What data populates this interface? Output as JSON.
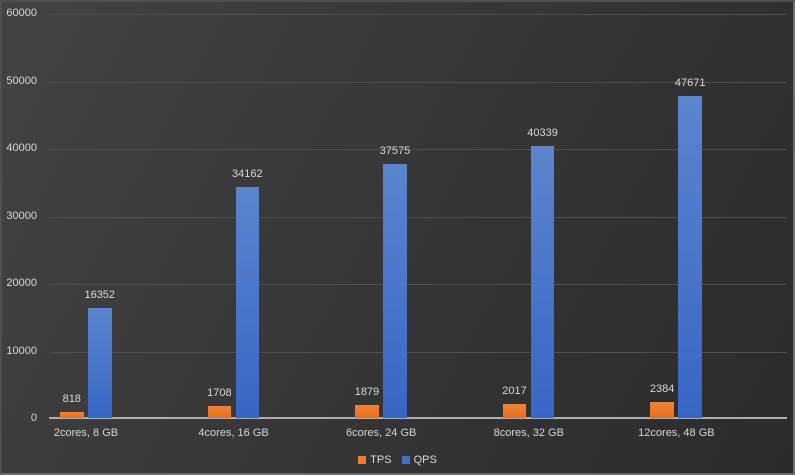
{
  "chart_data": {
    "type": "bar",
    "title": "",
    "xlabel": "",
    "ylabel": "",
    "categories": [
      "2cores, 8 GB",
      "4cores, 16 GB",
      "6cores, 24 GB",
      "8cores, 32 GB",
      "12cores, 48 GB"
    ],
    "series": [
      {
        "name": "TPS",
        "color": "#ED7D31",
        "gradient_top": "#F08437",
        "gradient_bottom": "#E76E1D",
        "values": [
          818,
          1708,
          1879,
          2017,
          2384
        ]
      },
      {
        "name": "QPS",
        "color": "#4472C4",
        "gradient_top": "#5C85CF",
        "gradient_bottom": "#3866C5",
        "values": [
          16352,
          34162,
          37575,
          40339,
          47671
        ]
      }
    ],
    "ylim": [
      0,
      60000
    ],
    "ytick_step": 10000,
    "ytick_labels": [
      "0",
      "10000",
      "20000",
      "30000",
      "40000",
      "50000",
      "60000"
    ],
    "grid": true,
    "data_labels": true,
    "legend_position": "bottom-center"
  },
  "theme": {
    "background_top_left": "#434343",
    "background_bottom_right": "#2b2b2b",
    "text_color": "#d9d9d9",
    "gridline_color": "#4f4f4f",
    "axis_line_color": "#aeaeae",
    "border_color": "#6a6a6a"
  }
}
